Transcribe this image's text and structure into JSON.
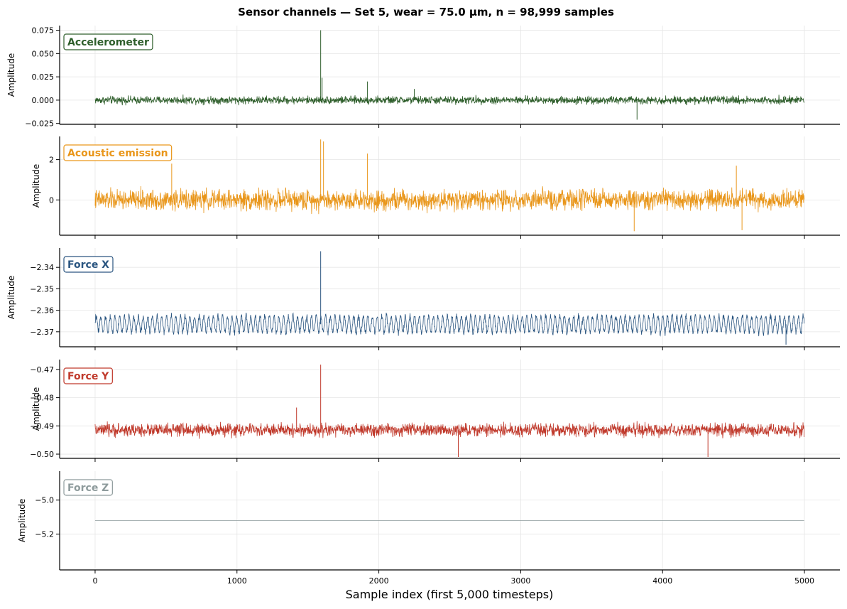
{
  "chart_data": {
    "type": "line",
    "title": "Sensor channels — Set 5, wear = 75.0 µm, n = 98,999 samples",
    "xlabel": "Sample index (first 5,000 timesteps)",
    "ylabel": "Amplitude",
    "xlim": [
      -250,
      5250
    ],
    "x_ticks": [
      "0",
      "1000",
      "2000",
      "3000",
      "4000",
      "5000"
    ],
    "x_tick_values": [
      0,
      1000,
      2000,
      3000,
      4000,
      5000
    ],
    "grid": true,
    "panels": [
      {
        "name": "Accelerometer",
        "color": "#2e5e2b",
        "ylim": [
          -0.026,
          0.08
        ],
        "y_ticks": [
          "0.075",
          "0.050",
          "0.025",
          "0.000",
          "−0.025"
        ],
        "y_tick_values": [
          0.075,
          0.05,
          0.025,
          0.0,
          -0.025
        ],
        "mean": 0.0,
        "noise_amp": 0.0062,
        "sine_amp": 0.0,
        "sine_period": 0,
        "spikes": [
          [
            1590,
            0.075
          ],
          [
            1600,
            0.024
          ],
          [
            1920,
            0.02
          ],
          [
            3820,
            -0.021
          ],
          [
            2250,
            0.012
          ]
        ]
      },
      {
        "name": "Acoustic emission",
        "color": "#e9961a",
        "ylim": [
          -1.75,
          3.15
        ],
        "y_ticks": [
          "2",
          "0"
        ],
        "y_tick_values": [
          2,
          0
        ],
        "mean": 0.0,
        "noise_amp": 0.75,
        "sine_amp": 0.0,
        "sine_period": 0,
        "spikes": [
          [
            1590,
            3.0
          ],
          [
            1610,
            2.9
          ],
          [
            1920,
            2.3
          ],
          [
            3800,
            -1.55
          ],
          [
            4560,
            -1.5
          ],
          [
            540,
            1.8
          ],
          [
            4520,
            1.7
          ]
        ]
      },
      {
        "name": "Force X",
        "color": "#2a5580",
        "ylim": [
          -2.377,
          -2.331
        ],
        "y_ticks": [
          "−2.34",
          "−2.35",
          "−2.36",
          "−2.37"
        ],
        "y_tick_values": [
          -2.34,
          -2.35,
          -2.36,
          -2.37
        ],
        "mean": -2.3665,
        "noise_amp": 0.0022,
        "sine_amp": 0.0038,
        "sine_period": 33,
        "spikes": [
          [
            1590,
            -2.3325
          ],
          [
            4870,
            -2.376
          ]
        ]
      },
      {
        "name": "Force Y",
        "color": "#c0392b",
        "ylim": [
          -0.5015,
          -0.4665
        ],
        "y_ticks": [
          "−0.47",
          "−0.48",
          "−0.49",
          "−0.50"
        ],
        "y_tick_values": [
          -0.47,
          -0.48,
          -0.49,
          -0.5
        ],
        "mean": -0.4915,
        "noise_amp": 0.0034,
        "sine_amp": 0.0,
        "sine_period": 0,
        "spikes": [
          [
            1590,
            -0.4683
          ],
          [
            1420,
            -0.4835
          ],
          [
            2560,
            -0.501
          ],
          [
            4320,
            -0.501
          ]
        ]
      },
      {
        "name": "Force Z",
        "color": "#8e9b9c",
        "ylim": [
          -5.41,
          -4.83
        ],
        "y_ticks": [
          "−5.0",
          "−5.2"
        ],
        "y_tick_values": [
          -5.0,
          -5.2
        ],
        "mean": -5.12,
        "noise_amp": 0.0,
        "sine_amp": 0.0,
        "sine_period": 0,
        "spikes": []
      }
    ]
  }
}
